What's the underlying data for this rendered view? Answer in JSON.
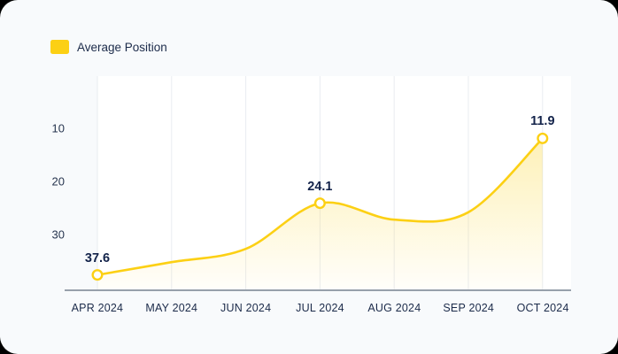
{
  "card": {
    "background": "#F8FAFC"
  },
  "legend": {
    "label": "Average Position",
    "position": "top-left"
  },
  "chart_data": {
    "type": "area",
    "title": "",
    "categories": [
      "APR 2024",
      "MAY 2024",
      "JUN 2024",
      "JUL 2024",
      "AUG 2024",
      "SEP 2024",
      "OCT 2024"
    ],
    "series": [
      {
        "name": "Average Position",
        "values": [
          37.6,
          35.2,
          32.7,
          24.1,
          27.2,
          25.8,
          11.9
        ]
      }
    ],
    "labeled_points": [
      {
        "index": 0,
        "text": "37.6"
      },
      {
        "index": 3,
        "text": "24.1"
      },
      {
        "index": 6,
        "text": "11.9"
      }
    ],
    "y_ticks": [
      "10",
      "20",
      "30"
    ],
    "y_axis_inverted": true,
    "y_range_shown": [
      10,
      30
    ],
    "grid": "vertical-only",
    "legend_position": "top-left",
    "colors": {
      "line": "#FCD014",
      "area_top": "rgba(252,208,20,0.30)",
      "area_bottom": "rgba(252,208,20,0.02)",
      "grid": "#E9ECF1",
      "axis_line": "#97A0AB",
      "text": "#1C2B4A",
      "plot_background": "#FFFFFF",
      "marker_fill": "#FFFFFF"
    }
  }
}
